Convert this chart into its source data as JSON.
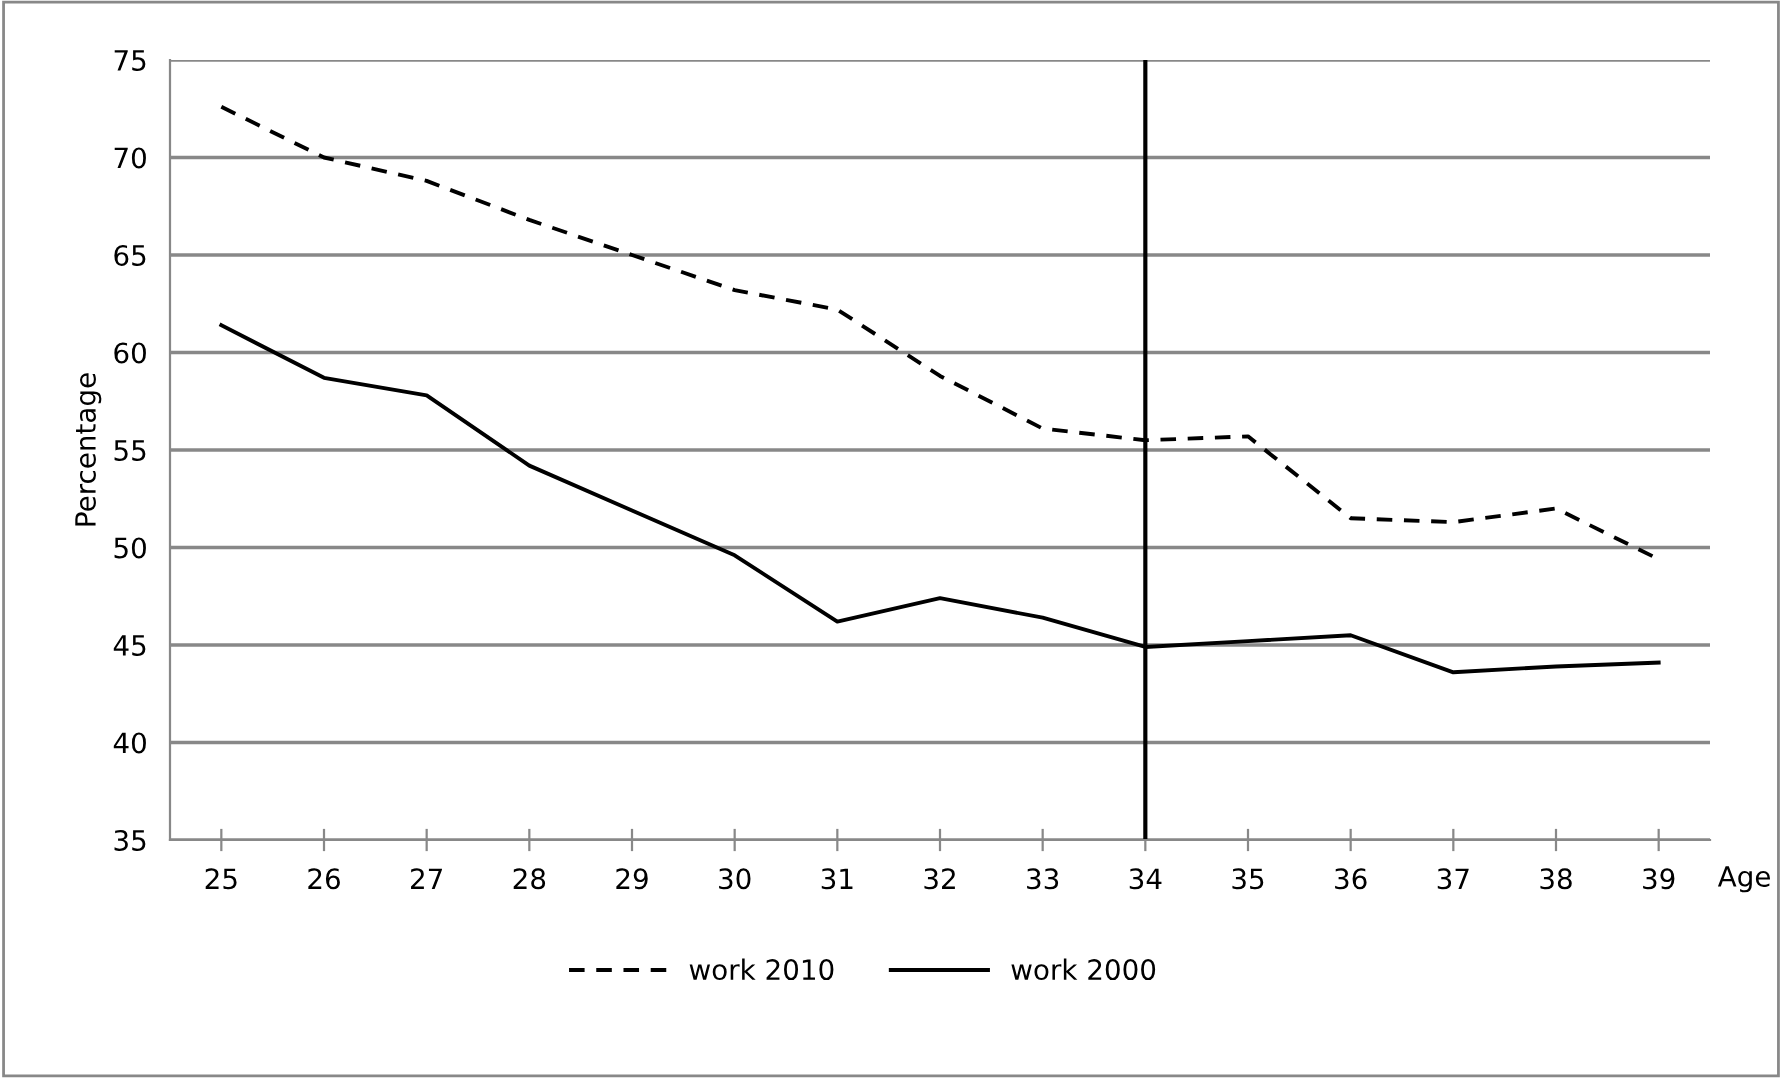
{
  "chart_data": {
    "type": "line",
    "xlabel": "Age",
    "ylabel": "Percentage",
    "x": [
      25,
      26,
      27,
      28,
      29,
      30,
      31,
      32,
      33,
      34,
      35,
      36,
      37,
      38,
      39
    ],
    "xlim": [
      24.5,
      39.5
    ],
    "xticks": [
      25,
      26,
      27,
      28,
      29,
      30,
      31,
      32,
      33,
      34,
      35,
      36,
      37,
      38,
      39
    ],
    "ylim": [
      35,
      75
    ],
    "yticks": [
      35,
      40,
      45,
      50,
      55,
      60,
      65,
      70,
      75
    ],
    "grid": "y",
    "legend": "bottom",
    "series": [
      {
        "name": "work 2010",
        "color": "#000000",
        "line_style": "dashed",
        "values": [
          72.6,
          70,
          68.8,
          66.8,
          65,
          63.2,
          62.2,
          58.8,
          56.1,
          55.5,
          55.7,
          51.5,
          51.3,
          52,
          49.4
        ]
      },
      {
        "name": "work 2000",
        "color": "#000000",
        "line_style": "solid",
        "values": [
          61.4,
          58.7,
          57.8,
          54.2,
          51.9,
          49.6,
          46.2,
          47.4,
          46.4,
          44.9,
          45.2,
          45.5,
          43.6,
          43.9,
          44.1
        ]
      }
    ],
    "ref_lines": [
      {
        "axis": "x",
        "value": 34,
        "color": "#000000",
        "line_style": "solid"
      }
    ]
  }
}
